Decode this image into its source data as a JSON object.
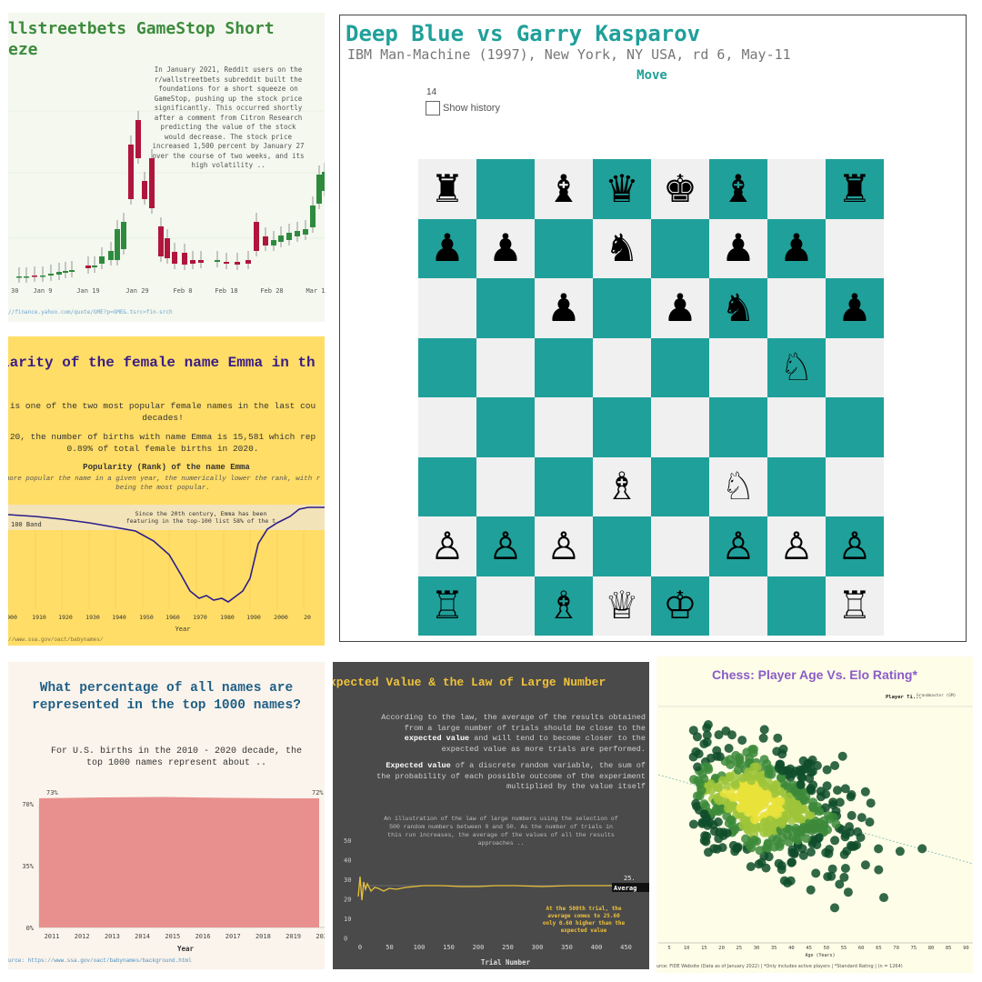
{
  "gamestop": {
    "title_line1": "llstreetbets GameStop Short",
    "title_line2": "eze",
    "body": "In January 2021, Reddit users on the r/wallstreetbets subreddit built the foundations for a short squeeze on GameStop, pushing up the stock price significantly. This occurred shortly after a comment from Citron Research predicting the value of the stock would decrease. The stock price increased 1,500 percent by January 27 over the course of two weeks, and its high volatility ..",
    "x_ticks": [
      "c 30",
      "Jan 9",
      "Jan 19",
      "Jan 29",
      "Feb 8",
      "Feb 18",
      "Feb 28",
      "Mar 1"
    ],
    "source": "//finance.yahoo.com/quote/GME?p=GME&.tsrc=fin-srch",
    "colors": {
      "up": "#2e8b3e",
      "down": "#b0153c"
    }
  },
  "emma": {
    "title": "larity of the female name Emma in th",
    "p1_line1": "is one of the two most popular female names in the last cou",
    "p1_line2": "decades!",
    "p2_line1": "20, the number of births with name Emma is 15,581 which rep",
    "p2_line2": "0.89% of total female births in 2020.",
    "subtitle": "Popularity (Rank) of the name Emma",
    "italic_line1": "more popular the name in a given year, the numerically lower the rank, with r",
    "italic_line2": "being the most popular.",
    "band_label": "100 Band",
    "annotation_line1": "Since the 20th century, Emma has been",
    "annotation_line2": "featuring in the top-100 list 58% of the t",
    "x_ticks": [
      "900",
      "1910",
      "1920",
      "1930",
      "1940",
      "1950",
      "1960",
      "1970",
      "1980",
      "1990",
      "2000",
      "20"
    ],
    "xlabel": "Year",
    "source": "//www.ssa.gov/oact/babynames/"
  },
  "chess_board": {
    "title": "Deep Blue vs Garry Kasparov",
    "subtitle": "IBM Man-Machine (1997), New York, NY USA, rd 6, May-11",
    "move_label": "Move",
    "move_number": "14",
    "show_history_label": "Show history",
    "rows": [
      [
        "♜",
        "",
        "♝",
        "♛",
        "♚",
        "♝",
        "",
        "♜"
      ],
      [
        "♟",
        "♟",
        "",
        "♞",
        "",
        "♟",
        "♟",
        ""
      ],
      [
        "",
        "",
        "♟",
        "",
        "♟",
        "♞",
        "",
        "♟"
      ],
      [
        "",
        "",
        "",
        "",
        "",
        "",
        "♘",
        ""
      ],
      [
        "",
        "",
        "",
        "",
        "",
        "",
        "",
        ""
      ],
      [
        "",
        "",
        "",
        "♗",
        "",
        "♘",
        "",
        ""
      ],
      [
        "♙",
        "♙",
        "♙",
        "",
        "",
        "♙",
        "♙",
        "♙"
      ],
      [
        "♖",
        "",
        "♗",
        "♕",
        "♔",
        "",
        "",
        "♖"
      ]
    ],
    "colors": {
      "dark": "#20a09a",
      "light": "#f0f0f0"
    }
  },
  "names_top1000": {
    "title_line1": "What percentage of all names are",
    "title_line2": "represented in the top 1000 names?",
    "body_line1": "For U.S. births in the 2010 - 2020 decade, the",
    "body_line2": "top 1000 names represent about ..",
    "y_ticks": [
      "70%",
      "35%",
      "0%"
    ],
    "x_ticks": [
      "2011",
      "2012",
      "2013",
      "2014",
      "2015",
      "2016",
      "2017",
      "2018",
      "2019",
      "2020"
    ],
    "start_label": "73%",
    "end_label": "72%",
    "xlabel": "Year",
    "source": "urce: https://www.ssa.gov/oact/babynames/background.html"
  },
  "law_large_numbers": {
    "title": "xpected Value & the Law of Large Number",
    "p1_line1": "According to the law, the average of the results obtained",
    "p1_line2": "from a large number of trials should be close to the",
    "p1_line3_pre": "",
    "p1_bold": "expected value",
    "p1_line3_post": " and will tend to become closer to the",
    "p1_line4": "expected value as more trials are performed.",
    "p2_bold": "Expected value",
    "p2_line1_post": " of a discrete random variable, the sum of",
    "p2_line2": "the probability of each possible outcome of the experiment",
    "p2_line3": "multiplied by the value itself",
    "p3_line1": "An illustration of the law of large numbers using the selection of",
    "p3_line2": "500 random numbers between 0 and 50. As the number of trials in",
    "p3_line3": "this run increases, the average of the values of all the results",
    "p3_line4": "approaches ..",
    "y_ticks": [
      "50",
      "40",
      "30",
      "20",
      "10",
      "0"
    ],
    "x_ticks": [
      "0",
      "50",
      "100",
      "150",
      "200",
      "250",
      "300",
      "350",
      "400",
      "450",
      "5"
    ],
    "value_label": "25.",
    "avg_label": "Averag",
    "annotation_line1": "At the 500th trial, the",
    "annotation_line2": "average comes to 25.60",
    "annotation_line3": "only 0.60 higher than the",
    "annotation_line4": "expected value",
    "xlabel": "Trial Number"
  },
  "chess_elo": {
    "title": "Chess: Player Age Vs. Elo Rating*",
    "legend_title": "Player Ti...",
    "legend_item": "Grandmaster (GM)",
    "x_ticks": [
      "5",
      "10",
      "15",
      "20",
      "25",
      "30",
      "35",
      "40",
      "45",
      "50",
      "55",
      "60",
      "65",
      "70",
      "75",
      "80",
      "85",
      "90"
    ],
    "xlabel": "Age (Years)",
    "source": "urce: FIDE Website (Data as of January 2022) | *Only includes active players | *Standard Rating | (n = 1264)"
  }
}
